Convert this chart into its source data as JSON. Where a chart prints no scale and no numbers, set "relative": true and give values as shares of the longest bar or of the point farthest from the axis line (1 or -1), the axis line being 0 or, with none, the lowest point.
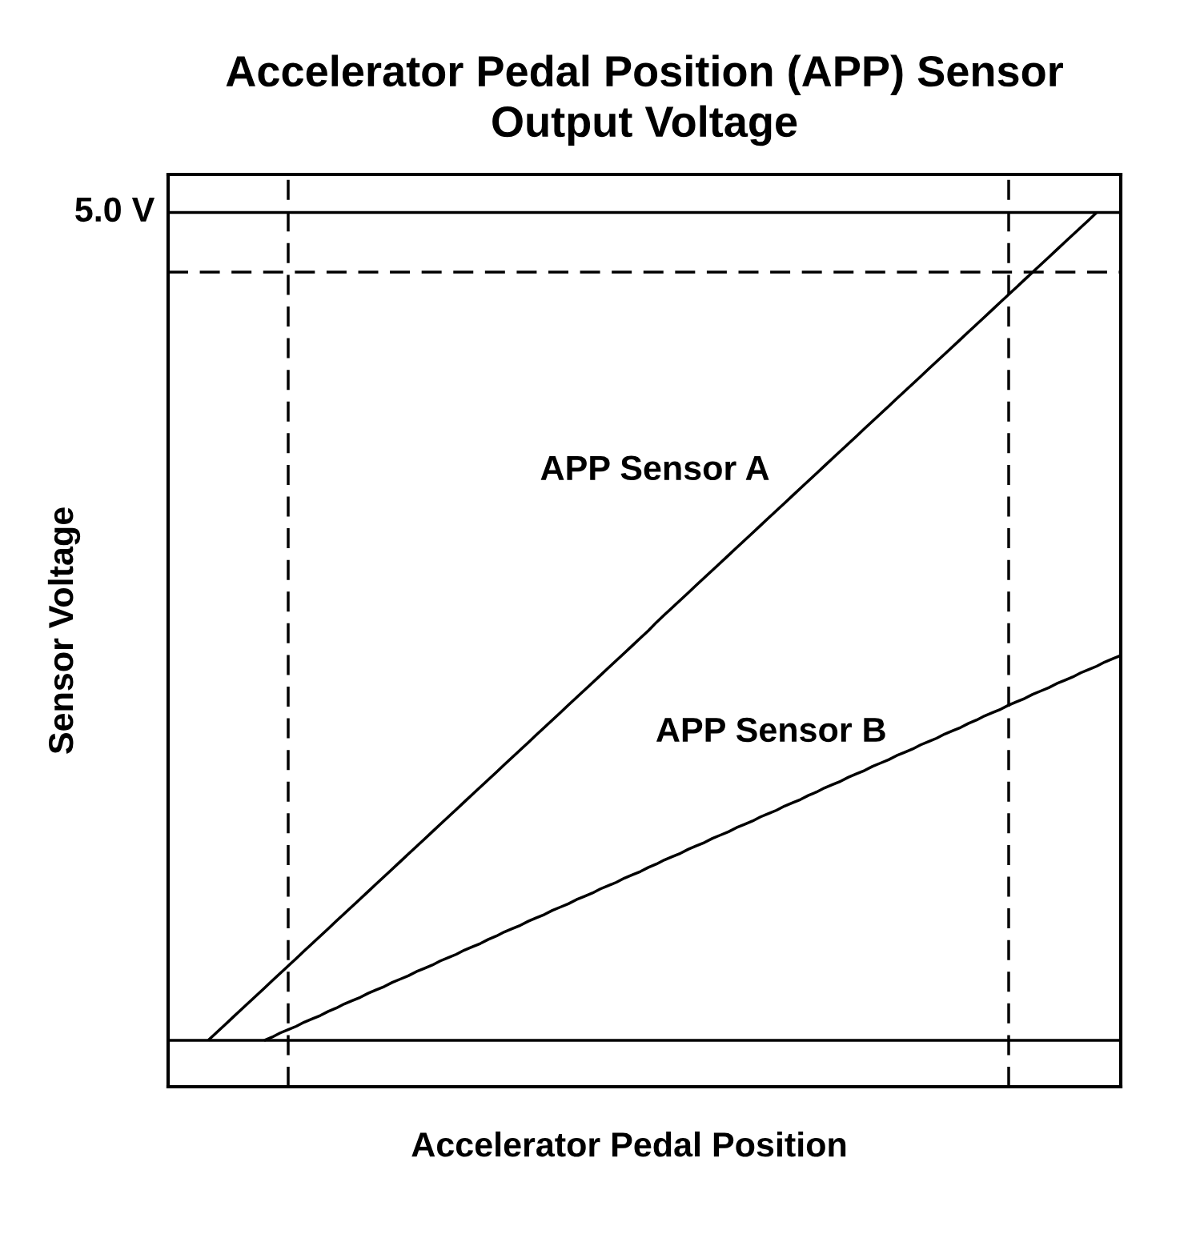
{
  "chart_data": {
    "type": "line",
    "title": "Accelerator Pedal Position (APP) Sensor\nOutput Voltage",
    "xlabel": "Accelerator Pedal Position",
    "ylabel": "Sensor Voltage",
    "relative": true,
    "line_style": "solid",
    "categories": [
      null,
      null,
      null,
      null,
      null,
      null,
      null,
      null,
      null,
      null,
      null,
      null,
      null,
      null,
      null,
      null,
      null,
      null,
      null,
      null,
      null,
      null,
      null,
      null,
      null,
      null,
      null,
      null,
      null,
      null,
      null,
      null,
      null,
      null,
      null,
      null,
      null,
      null,
      null,
      null,
      null,
      null,
      null,
      null,
      null,
      null,
      null,
      null,
      null,
      null,
      null,
      null,
      null,
      null,
      null,
      null,
      null,
      null,
      null,
      null,
      null,
      null,
      null,
      null,
      null,
      null,
      null,
      null,
      null,
      null,
      null,
      null,
      null,
      null,
      null,
      null,
      null,
      null,
      null,
      null,
      null,
      null,
      null,
      null,
      null,
      null,
      null,
      null,
      null,
      null,
      null,
      null,
      null,
      null,
      null,
      null,
      null,
      null,
      null,
      null,
      null,
      null,
      null,
      null,
      null,
      null,
      null,
      null,
      null,
      null,
      null,
      null,
      null,
      null,
      null,
      null,
      null,
      null,
      null,
      null
    ],
    "series": [
      {
        "name": "APP Sensor A",
        "color": "#000000",
        "values": [
          null,
          null,
          null,
          null,
          null,
          0,
          0.009,
          0.018,
          0.027,
          0.036,
          0.045,
          0.054,
          0.063,
          0.072,
          0.081,
          0.09,
          0.099,
          0.108,
          0.117,
          0.126,
          0.135,
          0.144,
          0.153,
          0.162,
          0.171,
          0.18,
          0.189,
          0.198,
          0.207,
          0.216,
          0.225,
          0.234,
          0.243,
          0.252,
          0.261,
          0.27,
          0.279,
          0.288,
          0.297,
          0.306,
          0.315,
          0.324,
          0.333,
          0.342,
          0.351,
          0.36,
          0.369,
          0.378,
          0.387,
          0.396,
          0.405,
          0.414,
          0.423,
          0.432,
          0.441,
          0.45,
          0.459,
          0.468,
          0.477,
          0.486,
          0.495,
          0.505,
          0.514,
          0.523,
          0.532,
          0.541,
          0.55,
          0.559,
          0.568,
          0.577,
          0.586,
          0.595,
          0.604,
          0.613,
          0.622,
          0.631,
          0.64,
          0.649,
          0.658,
          0.667,
          0.676,
          0.685,
          0.694,
          0.703,
          0.712,
          0.721,
          0.73,
          0.739,
          0.748,
          0.757,
          0.766,
          0.775,
          0.784,
          0.793,
          0.802,
          0.811,
          0.82,
          0.829,
          0.838,
          0.847,
          0.856,
          0.865,
          0.874,
          0.883,
          0.892,
          0.901,
          0.91,
          0.919,
          0.928,
          0.937,
          0.946,
          0.955,
          0.964,
          0.973,
          0.982,
          0.991,
          1,
          null,
          null,
          null
        ]
      },
      {
        "name": "APP Sensor B",
        "color": "#000000",
        "values": [
          null,
          null,
          null,
          null,
          null,
          null,
          null,
          null,
          null,
          null,
          null,
          null,
          0,
          0.004,
          0.009,
          0.013,
          0.017,
          0.022,
          0.026,
          0.03,
          0.035,
          0.039,
          0.044,
          0.048,
          0.052,
          0.057,
          0.061,
          0.065,
          0.07,
          0.074,
          0.078,
          0.083,
          0.087,
          0.091,
          0.096,
          0.1,
          0.104,
          0.109,
          0.113,
          0.117,
          0.122,
          0.126,
          0.131,
          0.135,
          0.139,
          0.144,
          0.148,
          0.152,
          0.157,
          0.161,
          0.165,
          0.17,
          0.174,
          0.178,
          0.183,
          0.187,
          0.191,
          0.196,
          0.2,
          0.204,
          0.209,
          0.213,
          0.218,
          0.222,
          0.226,
          0.231,
          0.235,
          0.239,
          0.244,
          0.248,
          0.252,
          0.257,
          0.261,
          0.265,
          0.27,
          0.274,
          0.278,
          0.283,
          0.287,
          0.291,
          0.296,
          0.3,
          0.305,
          0.309,
          0.313,
          0.318,
          0.322,
          0.326,
          0.331,
          0.335,
          0.339,
          0.344,
          0.348,
          0.352,
          0.357,
          0.361,
          0.365,
          0.37,
          0.374,
          0.378,
          0.383,
          0.387,
          0.392,
          0.396,
          0.4,
          0.405,
          0.409,
          0.413,
          0.418,
          0.422,
          0.426,
          0.431,
          0.435,
          0.439,
          0.444,
          0.448,
          0.452,
          0.457,
          0.461,
          0.465
        ]
      }
    ],
    "ref_lines": [
      {
        "axis": "y",
        "value": 1,
        "label": "5.0 V",
        "line_style": "solid",
        "color": "#000000"
      },
      {
        "axis": "y",
        "value": 0,
        "line_style": "solid",
        "color": "#000000"
      },
      {
        "axis": "y",
        "value": 0.928,
        "line_style": "dashed",
        "color": "#000000"
      }
    ]
  }
}
